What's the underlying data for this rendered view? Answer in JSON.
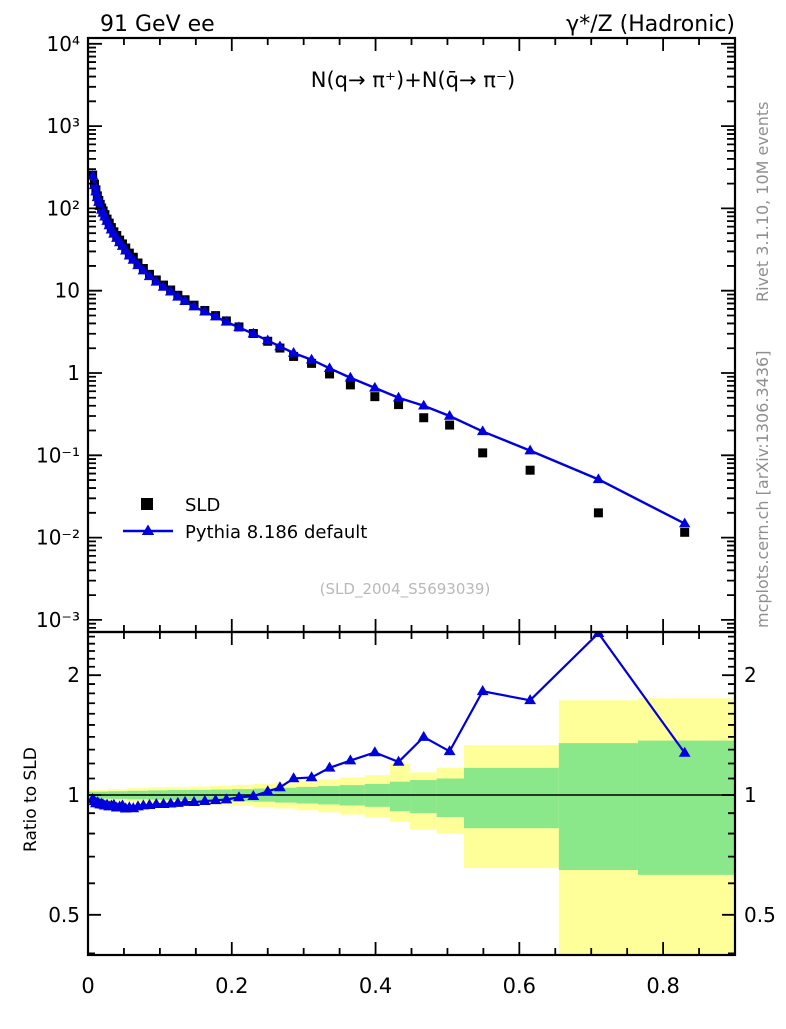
{
  "header": {
    "left": "91 GeV ee",
    "right": "γ*/Z (Hadronic)"
  },
  "panel": {
    "title": "N(q→ π⁺)+N(q̄→ π⁻)",
    "watermark": "(SLD_2004_S5693039)"
  },
  "side_notes": {
    "top": "Rivet 3.1.10,  10M events",
    "bottom": "mcplots.cern.ch [arXiv:1306.3436]"
  },
  "legend": [
    {
      "label": "SLD",
      "marker": "square",
      "color": "#000000"
    },
    {
      "label": "Pythia 8.186 default",
      "marker": "triangle-line",
      "color": "#0000dd"
    }
  ],
  "axes": {
    "x": {
      "range": [
        0,
        0.9
      ],
      "major_tick_values": [
        0,
        0.2,
        0.4,
        0.6,
        0.8
      ],
      "labels": [
        "0",
        "0.2",
        "0.4",
        "0.6",
        "0.8"
      ],
      "minor_step": 0.05
    },
    "y_main": {
      "scale": "log",
      "range": [
        0.001,
        10000
      ],
      "labels": [
        "10⁴",
        "10³",
        "10²",
        "10",
        "1",
        "10⁻¹",
        "10⁻²",
        "10⁻³"
      ],
      "label_values": [
        10000,
        1000,
        100,
        10,
        1,
        0.1,
        0.01,
        0.001
      ]
    },
    "y_ratio": {
      "scale": "log",
      "label": "Ratio to SLD",
      "labels": [
        "2",
        "1",
        "0.5"
      ],
      "label_values": [
        2,
        1,
        0.5
      ],
      "range": [
        0.396,
        2.57
      ]
    }
  },
  "chart_data": {
    "type": "scatter",
    "subtype": "data-vs-mc-with-ratio",
    "title": "N(q→ π⁺)+N(q̄→ π⁻)",
    "x": [
      0.0065,
      0.009,
      0.011,
      0.013,
      0.015,
      0.017,
      0.019,
      0.021,
      0.0235,
      0.0265,
      0.0295,
      0.0325,
      0.036,
      0.04,
      0.044,
      0.048,
      0.0525,
      0.0575,
      0.063,
      0.0695,
      0.077,
      0.0855,
      0.095,
      0.105,
      0.115,
      0.125,
      0.135,
      0.1475,
      0.1625,
      0.1775,
      0.1925,
      0.21,
      0.23,
      0.25,
      0.267,
      0.286,
      0.311,
      0.336,
      0.365,
      0.399,
      0.432,
      0.467,
      0.503,
      0.549,
      0.615,
      0.71,
      0.83
    ],
    "series": [
      {
        "name": "SLD",
        "marker": "square",
        "color": "#000000",
        "values": [
          254,
          197,
          168,
          142,
          125,
          112,
          101,
          93.1,
          84,
          74.1,
          66.3,
          58.5,
          51.9,
          46.8,
          41.2,
          37,
          33,
          28.6,
          25.5,
          21.7,
          18.6,
          15.8,
          13.5,
          11.7,
          10.2,
          8.8,
          7.76,
          6.67,
          5.75,
          4.98,
          4.29,
          3.63,
          3.02,
          2.43,
          2.01,
          1.59,
          1.31,
          0.974,
          0.717,
          0.516,
          0.413,
          0.286,
          0.233,
          0.107,
          0.0659,
          0.02,
          0.0116
        ]
      },
      {
        "name": "Pythia 8.186 default",
        "marker": "triangle",
        "color": "#0000dd",
        "values": [
          248,
          190,
          160,
          136,
          119,
          106,
          96,
          88,
          79,
          70,
          62,
          55,
          49,
          43.5,
          38.5,
          34.8,
          30.5,
          26.6,
          23.6,
          20.3,
          17.5,
          14.9,
          12.8,
          11.1,
          9.7,
          8.4,
          7.45,
          6.4,
          5.55,
          4.83,
          4.18,
          3.58,
          3.0,
          2.48,
          2.1,
          1.75,
          1.45,
          1.14,
          0.875,
          0.66,
          0.5,
          0.4,
          0.3,
          0.195,
          0.114,
          0.051,
          0.0148
        ]
      }
    ],
    "ratio_reference": "SLD",
    "band_colors": {
      "outer": "#ffff99",
      "inner": "#8ae88a"
    },
    "bands": [
      {
        "x0": 0.0,
        "x1": 0.028,
        "yellow": [
          0.97,
          1.03
        ],
        "green": [
          0.98,
          1.02
        ]
      },
      {
        "x0": 0.028,
        "x1": 0.055,
        "yellow": [
          0.965,
          1.035
        ],
        "green": [
          0.978,
          1.022
        ]
      },
      {
        "x0": 0.055,
        "x1": 0.083,
        "yellow": [
          0.96,
          1.04
        ],
        "green": [
          0.975,
          1.025
        ]
      },
      {
        "x0": 0.083,
        "x1": 0.11,
        "yellow": [
          0.955,
          1.045
        ],
        "green": [
          0.973,
          1.027
        ]
      },
      {
        "x0": 0.11,
        "x1": 0.14,
        "yellow": [
          0.952,
          1.048
        ],
        "green": [
          0.971,
          1.029
        ]
      },
      {
        "x0": 0.14,
        "x1": 0.17,
        "yellow": [
          0.95,
          1.05
        ],
        "green": [
          0.97,
          1.03
        ]
      },
      {
        "x0": 0.17,
        "x1": 0.2,
        "yellow": [
          0.945,
          1.055
        ],
        "green": [
          0.968,
          1.032
        ]
      },
      {
        "x0": 0.2,
        "x1": 0.23,
        "yellow": [
          0.94,
          1.06
        ],
        "green": [
          0.965,
          1.035
        ]
      },
      {
        "x0": 0.23,
        "x1": 0.26,
        "yellow": [
          0.932,
          1.068
        ],
        "green": [
          0.962,
          1.038
        ]
      },
      {
        "x0": 0.26,
        "x1": 0.29,
        "yellow": [
          0.925,
          1.075
        ],
        "green": [
          0.957,
          1.043
        ]
      },
      {
        "x0": 0.29,
        "x1": 0.32,
        "yellow": [
          0.915,
          1.085
        ],
        "green": [
          0.952,
          1.048
        ]
      },
      {
        "x0": 0.32,
        "x1": 0.35,
        "yellow": [
          0.905,
          1.095
        ],
        "green": [
          0.947,
          1.053
        ]
      },
      {
        "x0": 0.35,
        "x1": 0.385,
        "yellow": [
          0.893,
          1.107
        ],
        "green": [
          0.941,
          1.059
        ]
      },
      {
        "x0": 0.385,
        "x1": 0.42,
        "yellow": [
          0.878,
          1.122
        ],
        "green": [
          0.934,
          1.066
        ]
      },
      {
        "x0": 0.42,
        "x1": 0.448,
        "yellow": [
          0.855,
          1.2
        ],
        "green": [
          0.91,
          1.08
        ]
      },
      {
        "x0": 0.448,
        "x1": 0.485,
        "yellow": [
          0.82,
          1.14
        ],
        "green": [
          0.9,
          1.09
        ]
      },
      {
        "x0": 0.485,
        "x1": 0.523,
        "yellow": [
          0.8,
          1.17
        ],
        "green": [
          0.88,
          1.1
        ]
      },
      {
        "x0": 0.523,
        "x1": 0.655,
        "yellow": [
          0.655,
          1.335
        ],
        "green": [
          0.825,
          1.17
        ]
      },
      {
        "x0": 0.655,
        "x1": 0.765,
        "yellow": [
          0.3,
          1.73
        ],
        "green": [
          0.648,
          1.35
        ]
      },
      {
        "x0": 0.765,
        "x1": 0.9,
        "yellow": [
          0.3,
          1.75
        ],
        "green": [
          0.63,
          1.37
        ]
      }
    ],
    "x_range": [
      0,
      0.9
    ],
    "y_range_main": [
      0.001,
      10000
    ],
    "y_range_ratio": [
      0.396,
      2.57
    ],
    "grid": false,
    "legend_position": "inside-left-middle"
  }
}
